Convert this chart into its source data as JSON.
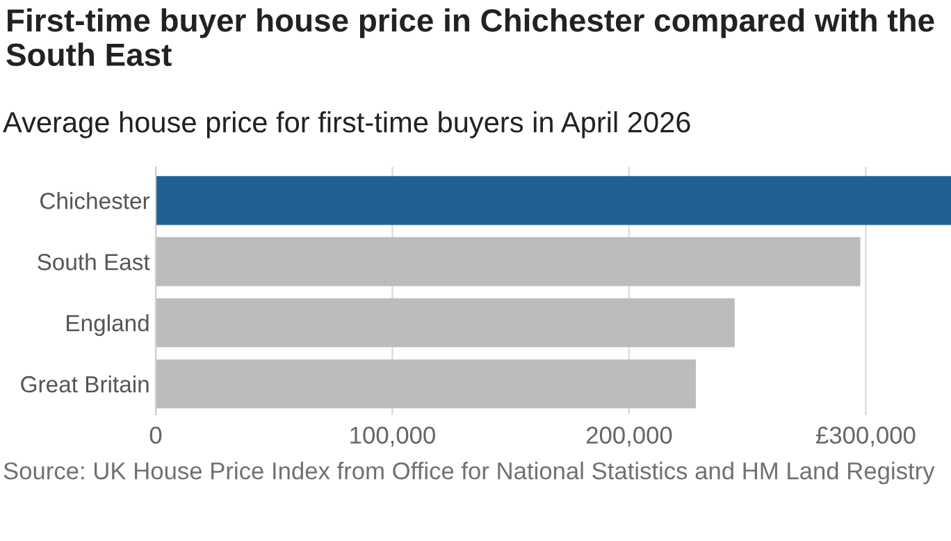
{
  "chart_data": {
    "type": "bar",
    "orientation": "horizontal",
    "title": "First-time buyer house price in Chichester compared with the South East",
    "subtitle": "Average house price for first-time buyers in April 2026",
    "categories": [
      "Chichester",
      "South East",
      "England",
      "Great Britain"
    ],
    "values": [
      336000,
      297700,
      244600,
      228200
    ],
    "colors": [
      "#206095",
      "#bcbcbc",
      "#bcbcbc",
      "#bcbcbc"
    ],
    "xlim": [
      0,
      336000
    ],
    "xticks": [
      0,
      {
        "value": 100000,
        "label": "100,000"
      },
      {
        "value": 200000,
        "label": "200,000"
      },
      {
        "value": 300000,
        "label": "£300,000"
      }
    ],
    "grid": "x",
    "legend": false,
    "annotations": [
      "Source: UK House Price Index from Office for National Statistics and HM Land Registry"
    ]
  }
}
